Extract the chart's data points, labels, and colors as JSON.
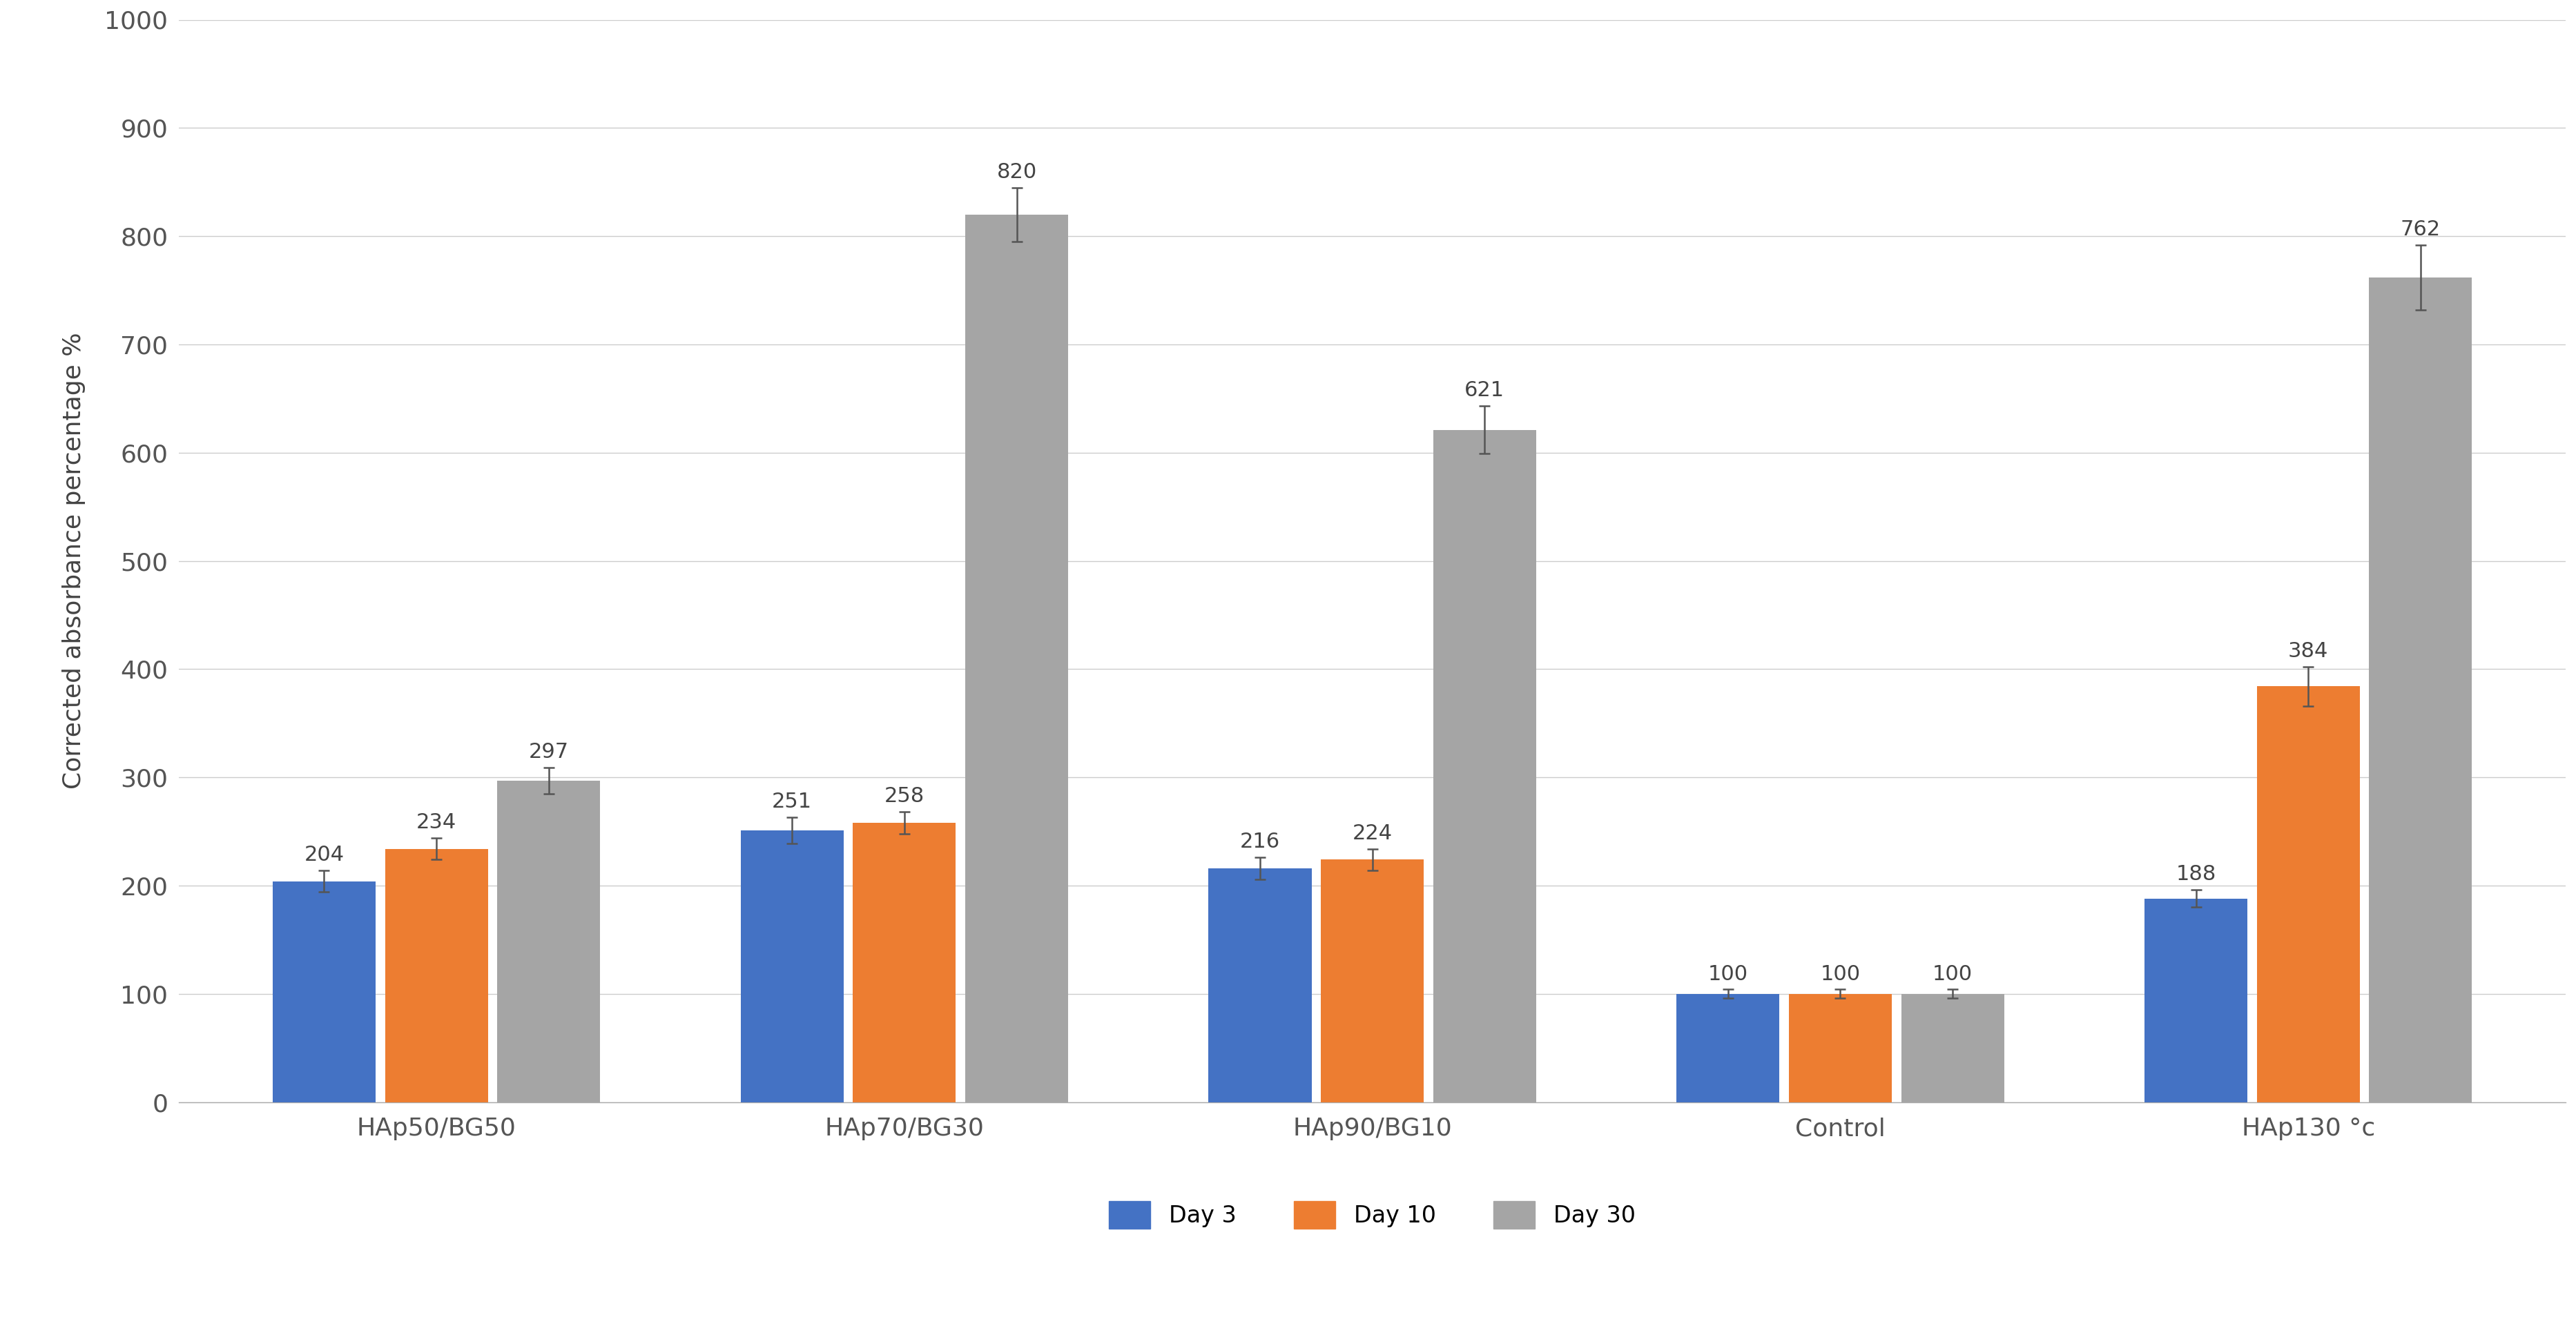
{
  "categories": [
    "HAp50/BG50",
    "HAp70/BG30",
    "HAp90/BG10",
    "Control",
    "HAp130 °c"
  ],
  "series": {
    "Day 3": [
      204,
      251,
      216,
      100,
      188
    ],
    "Day 10": [
      234,
      258,
      224,
      100,
      384
    ],
    "Day 30": [
      297,
      820,
      621,
      100,
      762
    ]
  },
  "errors": {
    "Day 3": [
      10,
      12,
      10,
      4,
      8
    ],
    "Day 10": [
      10,
      10,
      10,
      4,
      18
    ],
    "Day 30": [
      12,
      25,
      22,
      4,
      30
    ]
  },
  "colors": {
    "Day 3": "#4472C4",
    "Day 10": "#ED7D31",
    "Day 30": "#A5A5A5"
  },
  "ylabel": "Corrected absorbance percentage %",
  "ylim": [
    0,
    1000
  ],
  "yticks": [
    0,
    100,
    200,
    300,
    400,
    500,
    600,
    700,
    800,
    900,
    1000
  ],
  "bar_width": 0.22,
  "label_fontsize": 26,
  "tick_fontsize": 26,
  "annotation_fontsize": 22,
  "legend_fontsize": 24,
  "background_color": "#ffffff",
  "grid_color": "#cccccc",
  "error_capsize": 6,
  "error_linewidth": 1.8,
  "error_color": "#555555"
}
